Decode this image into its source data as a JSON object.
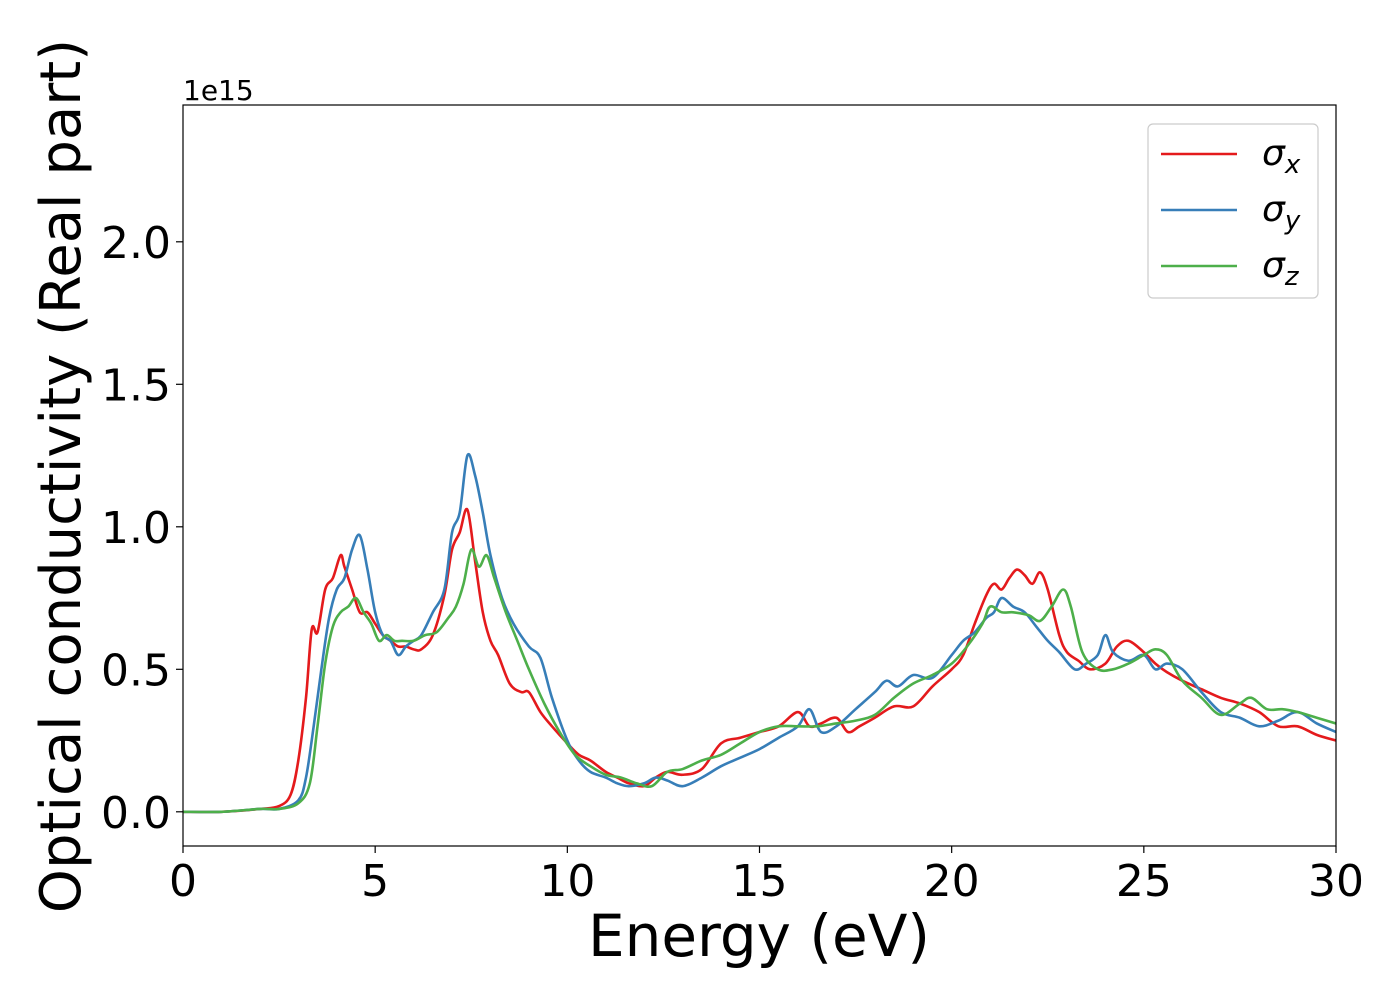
{
  "chart_data": {
    "type": "line",
    "xlabel": "Energy (eV)",
    "ylabel": "Optical conductivity (Real part)",
    "offset_text": "1e15",
    "xlim": [
      0,
      30
    ],
    "ylim": [
      -0.12,
      2.48
    ],
    "x_ticks": [
      0,
      5,
      10,
      15,
      20,
      25,
      30
    ],
    "x_tick_labels": [
      "0",
      "5",
      "10",
      "15",
      "20",
      "25",
      "30"
    ],
    "y_ticks": [
      0.0,
      0.5,
      1.0,
      1.5,
      2.0
    ],
    "y_tick_labels": [
      "0.0",
      "0.5",
      "1.0",
      "1.5",
      "2.0"
    ],
    "grid": false,
    "legend_position": "top-right",
    "series": [
      {
        "name": "σx",
        "legend_base": "σ",
        "legend_sub": "x",
        "color": "#e41a1c",
        "x": [
          0,
          1,
          2,
          2.5,
          2.8,
          3.0,
          3.2,
          3.35,
          3.5,
          3.7,
          3.9,
          4.1,
          4.2,
          4.4,
          4.6,
          4.8,
          5.0,
          5.2,
          5.4,
          5.6,
          5.8,
          6.0,
          6.2,
          6.5,
          6.8,
          7.0,
          7.2,
          7.4,
          7.6,
          7.8,
          8.0,
          8.2,
          8.5,
          8.8,
          9.0,
          9.3,
          9.6,
          10.0,
          10.3,
          10.6,
          11.0,
          11.3,
          11.6,
          12.0,
          12.3,
          12.6,
          13.0,
          13.5,
          14.0,
          14.5,
          15.0,
          15.5,
          16.0,
          16.3,
          16.6,
          17.0,
          17.3,
          17.6,
          18.0,
          18.5,
          19.0,
          19.5,
          20.0,
          20.3,
          20.6,
          20.9,
          21.1,
          21.3,
          21.5,
          21.7,
          21.9,
          22.1,
          22.3,
          22.5,
          22.8,
          23.0,
          23.3,
          23.6,
          24.0,
          24.3,
          24.6,
          25.0,
          25.3,
          25.6,
          26.0,
          26.5,
          27.0,
          27.5,
          28.0,
          28.5,
          29.0,
          29.5,
          30.0
        ],
        "y": [
          0.0,
          0.0,
          0.01,
          0.02,
          0.06,
          0.18,
          0.4,
          0.64,
          0.63,
          0.78,
          0.82,
          0.9,
          0.86,
          0.78,
          0.7,
          0.7,
          0.66,
          0.62,
          0.6,
          0.58,
          0.58,
          0.57,
          0.57,
          0.62,
          0.76,
          0.92,
          0.98,
          1.06,
          0.88,
          0.7,
          0.6,
          0.55,
          0.45,
          0.42,
          0.42,
          0.35,
          0.3,
          0.24,
          0.2,
          0.18,
          0.14,
          0.12,
          0.1,
          0.09,
          0.12,
          0.14,
          0.13,
          0.15,
          0.24,
          0.26,
          0.28,
          0.3,
          0.35,
          0.3,
          0.31,
          0.33,
          0.28,
          0.3,
          0.33,
          0.37,
          0.37,
          0.44,
          0.5,
          0.55,
          0.66,
          0.76,
          0.8,
          0.78,
          0.82,
          0.85,
          0.83,
          0.8,
          0.84,
          0.78,
          0.62,
          0.56,
          0.53,
          0.5,
          0.52,
          0.58,
          0.6,
          0.56,
          0.52,
          0.49,
          0.46,
          0.43,
          0.4,
          0.38,
          0.35,
          0.3,
          0.3,
          0.27,
          0.25
        ]
      },
      {
        "name": "σy",
        "legend_base": "σ",
        "legend_sub": "y",
        "color": "#377eb8",
        "x": [
          0,
          1,
          2,
          2.5,
          3.0,
          3.2,
          3.4,
          3.6,
          3.8,
          4.0,
          4.2,
          4.4,
          4.6,
          4.8,
          5.0,
          5.2,
          5.4,
          5.6,
          5.8,
          6.0,
          6.2,
          6.5,
          6.8,
          7.0,
          7.2,
          7.4,
          7.6,
          7.8,
          8.0,
          8.3,
          8.6,
          9.0,
          9.3,
          9.6,
          10.0,
          10.3,
          10.6,
          11.0,
          11.3,
          11.6,
          12.0,
          12.3,
          12.6,
          13.0,
          13.5,
          14.0,
          14.5,
          15.0,
          15.5,
          16.0,
          16.3,
          16.6,
          17.0,
          17.5,
          18.0,
          18.3,
          18.6,
          19.0,
          19.5,
          20.0,
          20.3,
          20.6,
          20.9,
          21.1,
          21.3,
          21.6,
          21.9,
          22.2,
          22.5,
          22.8,
          23.2,
          23.5,
          23.8,
          24.0,
          24.2,
          24.6,
          25.0,
          25.3,
          25.6,
          26.0,
          26.5,
          27.0,
          27.5,
          28.0,
          28.5,
          29.0,
          29.5,
          30.0
        ],
        "y": [
          0.0,
          0.0,
          0.01,
          0.01,
          0.04,
          0.12,
          0.3,
          0.5,
          0.68,
          0.78,
          0.82,
          0.92,
          0.97,
          0.85,
          0.7,
          0.62,
          0.6,
          0.55,
          0.58,
          0.6,
          0.62,
          0.7,
          0.78,
          0.98,
          1.05,
          1.25,
          1.18,
          1.05,
          0.9,
          0.75,
          0.66,
          0.58,
          0.54,
          0.4,
          0.25,
          0.18,
          0.14,
          0.12,
          0.1,
          0.09,
          0.1,
          0.12,
          0.11,
          0.09,
          0.12,
          0.16,
          0.19,
          0.22,
          0.26,
          0.3,
          0.36,
          0.28,
          0.3,
          0.36,
          0.42,
          0.46,
          0.44,
          0.48,
          0.47,
          0.55,
          0.6,
          0.63,
          0.68,
          0.7,
          0.75,
          0.72,
          0.7,
          0.65,
          0.6,
          0.56,
          0.5,
          0.52,
          0.55,
          0.62,
          0.56,
          0.53,
          0.55,
          0.5,
          0.52,
          0.5,
          0.42,
          0.35,
          0.33,
          0.3,
          0.32,
          0.35,
          0.31,
          0.28
        ]
      },
      {
        "name": "σz",
        "legend_base": "σ",
        "legend_sub": "z",
        "color": "#4daf4a",
        "x": [
          0,
          1,
          2,
          2.5,
          3.0,
          3.3,
          3.5,
          3.7,
          3.9,
          4.1,
          4.3,
          4.5,
          4.7,
          4.9,
          5.1,
          5.3,
          5.5,
          5.7,
          6.0,
          6.3,
          6.6,
          6.9,
          7.1,
          7.3,
          7.5,
          7.7,
          7.9,
          8.1,
          8.4,
          8.7,
          9.0,
          9.4,
          9.8,
          10.2,
          10.6,
          11.0,
          11.4,
          11.8,
          12.2,
          12.6,
          13.0,
          13.5,
          14.0,
          14.5,
          15.0,
          15.5,
          16.0,
          16.5,
          17.0,
          17.5,
          18.0,
          18.5,
          19.0,
          19.5,
          20.0,
          20.4,
          20.8,
          21.0,
          21.3,
          21.6,
          22.0,
          22.3,
          22.6,
          22.9,
          23.1,
          23.4,
          23.8,
          24.2,
          24.6,
          25.0,
          25.3,
          25.6,
          26.0,
          26.5,
          27.0,
          27.5,
          27.8,
          28.2,
          28.6,
          29.0,
          29.5,
          30.0
        ],
        "y": [
          0.0,
          0.0,
          0.01,
          0.01,
          0.03,
          0.1,
          0.3,
          0.52,
          0.65,
          0.7,
          0.72,
          0.75,
          0.7,
          0.66,
          0.6,
          0.62,
          0.6,
          0.6,
          0.6,
          0.62,
          0.63,
          0.68,
          0.72,
          0.8,
          0.92,
          0.86,
          0.9,
          0.82,
          0.7,
          0.6,
          0.5,
          0.38,
          0.28,
          0.2,
          0.16,
          0.13,
          0.12,
          0.1,
          0.09,
          0.14,
          0.15,
          0.18,
          0.2,
          0.24,
          0.28,
          0.3,
          0.3,
          0.3,
          0.31,
          0.32,
          0.34,
          0.4,
          0.45,
          0.48,
          0.52,
          0.58,
          0.66,
          0.72,
          0.7,
          0.7,
          0.69,
          0.67,
          0.72,
          0.78,
          0.72,
          0.56,
          0.5,
          0.5,
          0.52,
          0.55,
          0.57,
          0.55,
          0.46,
          0.4,
          0.34,
          0.38,
          0.4,
          0.36,
          0.36,
          0.35,
          0.33,
          0.31
        ]
      }
    ]
  }
}
